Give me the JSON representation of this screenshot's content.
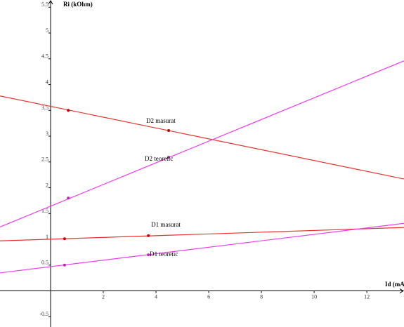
{
  "chart_data": {
    "type": "line",
    "x_label": "Id (mA)",
    "y_label": "Ri (kOhm)",
    "xlim": [
      -1.92,
      13.41
    ],
    "ylim": [
      -0.7,
      5.64
    ],
    "xticks": [
      2,
      4,
      6,
      8,
      10,
      12
    ],
    "yticks": [
      -0.5,
      0.5,
      1,
      1.5,
      2,
      2.5,
      3,
      3.5,
      4,
      4.5,
      5,
      5.5
    ],
    "grid": false,
    "series": [
      {
        "name": "D2 masurat",
        "color": "#e8332b",
        "point_color": "#c00000",
        "x": [
          -1.92,
          13.41
        ],
        "values": [
          3.78,
          2.17
        ],
        "points_x": [
          0.67,
          4.48
        ],
        "points_y": [
          3.5,
          3.11
        ]
      },
      {
        "name": "D2 teoretic",
        "color": "#f03cf0",
        "point_color": "#c020c0",
        "x": [
          -1.92,
          13.41
        ],
        "values": [
          1.24,
          4.46
        ],
        "points_x": [
          0.67,
          4.48
        ],
        "points_y": [
          1.8,
          2.59
        ]
      },
      {
        "name": "D1 masurat",
        "color": "#e8332b",
        "point_color": "#c00000",
        "x": [
          -1.92,
          13.41
        ],
        "values": [
          0.97,
          1.23
        ],
        "points_x": [
          0.53,
          3.71
        ],
        "points_y": [
          1.01,
          1.07
        ]
      },
      {
        "name": "D1 teoretic",
        "color": "#f03cf0",
        "point_color": "#c020c0",
        "x": [
          -1.92,
          13.41
        ],
        "values": [
          0.35,
          1.31
        ],
        "points_x": [
          0.53,
          3.71
        ],
        "points_y": [
          0.5,
          0.7
        ]
      }
    ]
  }
}
